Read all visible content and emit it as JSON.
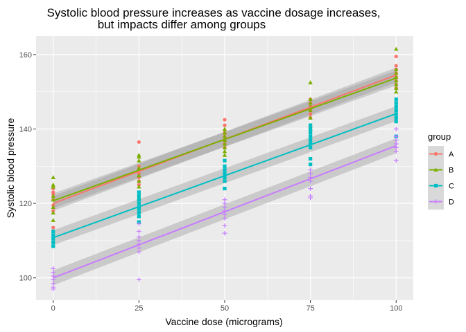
{
  "chart_data": {
    "type": "scatter",
    "title_lines": [
      "Systolic blood pressure increases as vaccine dosage increases,",
      "but impacts differ among groups"
    ],
    "xlabel": "Vaccine dose (micrograms)",
    "ylabel": "Systolic blood pressure",
    "xlim": [
      -5,
      105
    ],
    "ylim": [
      94,
      165
    ],
    "x_ticks": [
      0,
      25,
      50,
      75,
      100
    ],
    "y_ticks": [
      100,
      120,
      140,
      160
    ],
    "grid": true,
    "legend": {
      "title": "group",
      "position": "right"
    },
    "series": [
      {
        "name": "A",
        "color": "#F8766D",
        "shape": "circle",
        "fit": {
          "intercept": 120.0,
          "slope": 0.345
        },
        "points": [
          [
            0,
            113.5
          ],
          [
            0,
            118
          ],
          [
            0,
            119.5
          ],
          [
            0,
            121
          ],
          [
            0,
            122.5
          ],
          [
            0,
            123
          ],
          [
            0,
            124
          ],
          [
            25,
            125
          ],
          [
            25,
            126
          ],
          [
            25,
            127
          ],
          [
            25,
            128
          ],
          [
            25,
            129
          ],
          [
            25,
            130
          ],
          [
            25,
            136.5
          ],
          [
            50,
            131.5
          ],
          [
            50,
            135
          ],
          [
            50,
            136
          ],
          [
            50,
            137
          ],
          [
            50,
            138
          ],
          [
            50,
            139
          ],
          [
            50,
            141
          ],
          [
            50,
            142.5
          ],
          [
            75,
            140.5
          ],
          [
            75,
            143
          ],
          [
            75,
            144
          ],
          [
            75,
            145
          ],
          [
            75,
            146
          ],
          [
            75,
            147
          ],
          [
            75,
            148
          ],
          [
            100,
            151
          ],
          [
            100,
            152
          ],
          [
            100,
            153
          ],
          [
            100,
            154
          ],
          [
            100,
            155
          ],
          [
            100,
            156
          ],
          [
            100,
            157
          ],
          [
            100,
            159.5
          ]
        ]
      },
      {
        "name": "B",
        "color": "#7CAE00",
        "shape": "triangle",
        "fit": {
          "intercept": 120.7,
          "slope": 0.33
        },
        "points": [
          [
            0,
            115.5
          ],
          [
            0,
            117.5
          ],
          [
            0,
            119
          ],
          [
            0,
            121
          ],
          [
            0,
            122
          ],
          [
            0,
            124.5
          ],
          [
            0,
            125
          ],
          [
            0,
            127
          ],
          [
            25,
            121.5
          ],
          [
            25,
            124.5
          ],
          [
            25,
            126
          ],
          [
            25,
            127.5
          ],
          [
            25,
            129.5
          ],
          [
            25,
            131.5
          ],
          [
            25,
            132.5
          ],
          [
            25,
            133
          ],
          [
            50,
            133
          ],
          [
            50,
            134
          ],
          [
            50,
            135
          ],
          [
            50,
            136
          ],
          [
            50,
            137
          ],
          [
            50,
            138
          ],
          [
            50,
            139
          ],
          [
            50,
            140
          ],
          [
            75,
            140
          ],
          [
            75,
            141
          ],
          [
            75,
            143
          ],
          [
            75,
            145
          ],
          [
            75,
            146
          ],
          [
            75,
            147
          ],
          [
            75,
            148
          ],
          [
            75,
            152.5
          ],
          [
            100,
            150
          ],
          [
            100,
            151
          ],
          [
            100,
            152
          ],
          [
            100,
            153
          ],
          [
            100,
            154
          ],
          [
            100,
            155
          ],
          [
            100,
            156
          ],
          [
            100,
            161.5
          ]
        ]
      },
      {
        "name": "C",
        "color": "#00BFC4",
        "shape": "square",
        "fit": {
          "intercept": 110.8,
          "slope": 0.333
        },
        "points": [
          [
            0,
            108.5
          ],
          [
            0,
            109.5
          ],
          [
            0,
            110.5
          ],
          [
            0,
            111.5
          ],
          [
            0,
            112.5
          ],
          [
            25,
            115
          ],
          [
            25,
            116.5
          ],
          [
            25,
            117.5
          ],
          [
            25,
            118.5
          ],
          [
            25,
            119
          ],
          [
            25,
            120
          ],
          [
            25,
            121
          ],
          [
            25,
            122
          ],
          [
            25,
            123
          ],
          [
            50,
            124
          ],
          [
            50,
            126
          ],
          [
            50,
            127
          ],
          [
            50,
            128
          ],
          [
            50,
            129
          ],
          [
            50,
            130
          ],
          [
            50,
            131.5
          ],
          [
            75,
            130.5
          ],
          [
            75,
            132
          ],
          [
            75,
            135
          ],
          [
            75,
            136
          ],
          [
            75,
            137
          ],
          [
            75,
            138
          ],
          [
            75,
            139
          ],
          [
            75,
            140
          ],
          [
            75,
            141
          ],
          [
            100,
            138
          ],
          [
            100,
            142
          ],
          [
            100,
            143
          ],
          [
            100,
            144
          ],
          [
            100,
            145
          ],
          [
            100,
            146
          ],
          [
            100,
            147
          ],
          [
            100,
            148
          ]
        ]
      },
      {
        "name": "D",
        "color": "#C77CFF",
        "shape": "plus",
        "fit": {
          "intercept": 100.0,
          "slope": 0.355
        },
        "points": [
          [
            0,
            97
          ],
          [
            0,
            97.5
          ],
          [
            0,
            98.5
          ],
          [
            0,
            99.5
          ],
          [
            0,
            100.5
          ],
          [
            0,
            101.5
          ],
          [
            0,
            102.5
          ],
          [
            25,
            99.5
          ],
          [
            25,
            107
          ],
          [
            25,
            108
          ],
          [
            25,
            109
          ],
          [
            25,
            110
          ],
          [
            25,
            111
          ],
          [
            25,
            112.5
          ],
          [
            25,
            114.5
          ],
          [
            50,
            112
          ],
          [
            50,
            114
          ],
          [
            50,
            116
          ],
          [
            50,
            117
          ],
          [
            50,
            118
          ],
          [
            50,
            119
          ],
          [
            50,
            120
          ],
          [
            50,
            121
          ],
          [
            75,
            121.5
          ],
          [
            75,
            122
          ],
          [
            75,
            124
          ],
          [
            75,
            126
          ],
          [
            75,
            127
          ],
          [
            75,
            128
          ],
          [
            75,
            129
          ],
          [
            100,
            131.5
          ],
          [
            100,
            134
          ],
          [
            100,
            135
          ],
          [
            100,
            136
          ],
          [
            100,
            137
          ],
          [
            100,
            138
          ],
          [
            100,
            140
          ]
        ]
      }
    ]
  }
}
